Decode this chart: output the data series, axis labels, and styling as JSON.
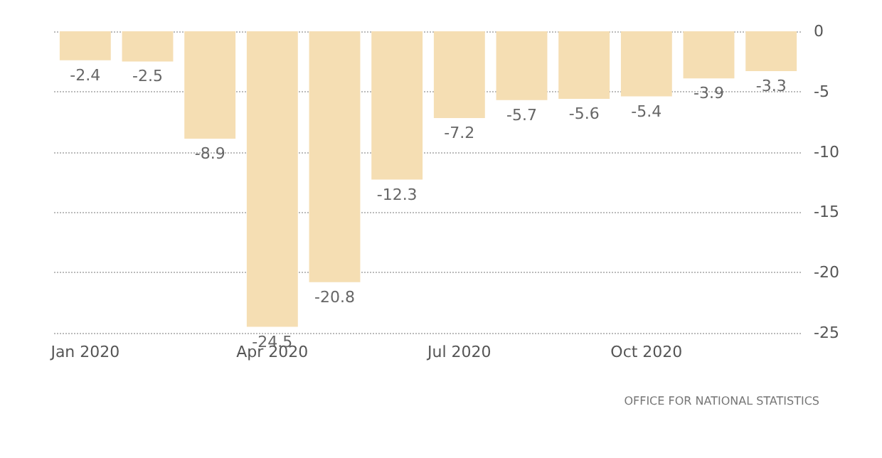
{
  "chart_data": {
    "type": "bar",
    "categories": [
      "Jan 2020",
      null,
      null,
      "Apr 2020",
      null,
      null,
      "Jul 2020",
      null,
      null,
      "Oct 2020",
      null,
      null
    ],
    "values": [
      -2.4,
      -2.5,
      -8.9,
      -24.5,
      -20.8,
      -12.3,
      -7.2,
      -5.7,
      -5.6,
      -5.4,
      -3.9,
      -3.3
    ],
    "color": "#f5deb3",
    "data_labels": true,
    "ylim": [
      -25,
      0
    ],
    "yticks": [
      0,
      -5,
      -10,
      -15,
      -20,
      -25
    ],
    "grid": "y",
    "annotations": [
      "OFFICE FOR NATIONAL STATISTICS"
    ]
  }
}
